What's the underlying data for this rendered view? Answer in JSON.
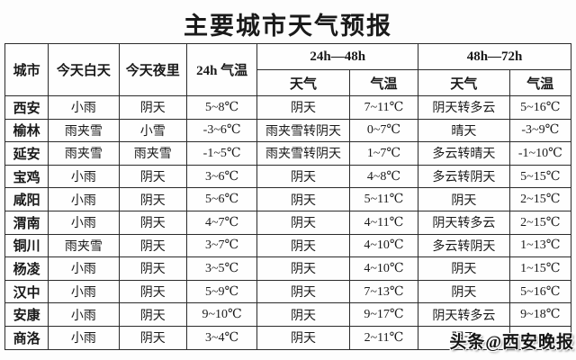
{
  "page": {
    "title": "主要城市天气预报",
    "watermark": "头条@西安晚报"
  },
  "colors": {
    "background": "#fdfdfd",
    "border": "#2b2b2b",
    "text": "#1a1a1a"
  },
  "table": {
    "corner_headers": [
      "城市",
      "今天白天",
      "今天夜里",
      "24h 气温"
    ],
    "group_headers": [
      "24h—48h",
      "48h—72h"
    ],
    "sub_headers": [
      "天气",
      "气温",
      "天气",
      "气温"
    ]
  },
  "chart_data": {
    "type": "table",
    "title": "主要城市天气预报",
    "columns": [
      "城市",
      "今天白天",
      "今天夜里",
      "24h 气温",
      "24h—48h 天气",
      "24h—48h 气温",
      "48h—72h 天气",
      "48h—72h 气温"
    ],
    "rows": [
      [
        "西安",
        "小雨",
        "阴天",
        "5~8℃",
        "阴天",
        "7~11℃",
        "阴天转多云",
        "5~16℃"
      ],
      [
        "榆林",
        "雨夹雪",
        "小雪",
        "-3~6℃",
        "雨夹雪转阴天",
        "0~7℃",
        "晴天",
        "-3~9℃"
      ],
      [
        "延安",
        "雨夹雪",
        "雨夹雪",
        "-1~5℃",
        "雨夹雪转阴天",
        "1~7℃",
        "多云转晴天",
        "-1~10℃"
      ],
      [
        "宝鸡",
        "小雨",
        "阴天",
        "3~6℃",
        "阴天",
        "4~8℃",
        "多云转阴天",
        "5~15℃"
      ],
      [
        "咸阳",
        "小雨",
        "阴天",
        "5~6℃",
        "阴天",
        "5~11℃",
        "阴天",
        "2~15℃"
      ],
      [
        "渭南",
        "小雨",
        "阴天",
        "4~7℃",
        "阴天",
        "4~11℃",
        "阴天转多云",
        "2~15℃"
      ],
      [
        "铜川",
        "雨夹雪",
        "阴天",
        "3~7℃",
        "阴天",
        "4~10℃",
        "多云转阴天",
        "1~13℃"
      ],
      [
        "杨凌",
        "小雨",
        "阴天",
        "3~5℃",
        "阴天",
        "4~10℃",
        "阴天",
        "1~15℃"
      ],
      [
        "汉中",
        "小雨",
        "阴天",
        "5~9℃",
        "阴天",
        "7~13℃",
        "阴天",
        "5~16℃"
      ],
      [
        "安康",
        "小雨",
        "阴天",
        "9~10℃",
        "阴天",
        "9~17℃",
        "阴天转多云",
        "9~18℃"
      ],
      [
        "商洛",
        "小雨",
        "阴天",
        "3~4℃",
        "阴天",
        "2~11℃",
        "阴天",
        ""
      ]
    ]
  }
}
